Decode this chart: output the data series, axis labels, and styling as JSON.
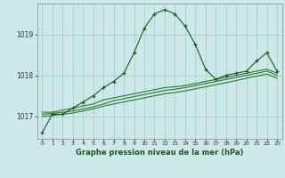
{
  "title": "Graphe pression niveau de la mer (hPa)",
  "background_color": "#cce8e8",
  "grid_color": "#aacece",
  "line_color_main": "#1a5c1a",
  "line_color_flat": "#2d7a2d",
  "xlim": [
    -0.5,
    23.5
  ],
  "ylim": [
    1016.45,
    1019.75
  ],
  "yticks": [
    1017,
    1018,
    1019
  ],
  "xticks": [
    0,
    1,
    2,
    3,
    4,
    5,
    6,
    7,
    8,
    9,
    10,
    11,
    12,
    13,
    14,
    15,
    16,
    17,
    18,
    19,
    20,
    21,
    22,
    23
  ],
  "x": [
    0,
    1,
    2,
    3,
    4,
    5,
    6,
    7,
    8,
    9,
    10,
    11,
    12,
    13,
    14,
    15,
    16,
    17,
    18,
    19,
    20,
    21,
    22,
    23
  ],
  "values_main": [
    1016.6,
    1017.05,
    1017.05,
    1017.2,
    1017.35,
    1017.5,
    1017.7,
    1017.85,
    1018.05,
    1018.55,
    1019.15,
    1019.5,
    1019.6,
    1019.5,
    1019.2,
    1018.75,
    1018.15,
    1017.9,
    1018.0,
    1018.05,
    1018.1,
    1018.35,
    1018.55,
    1018.1
  ],
  "values_flat1": [
    1017.1,
    1017.1,
    1017.15,
    1017.2,
    1017.25,
    1017.3,
    1017.4,
    1017.45,
    1017.5,
    1017.55,
    1017.6,
    1017.65,
    1017.7,
    1017.72,
    1017.75,
    1017.8,
    1017.85,
    1017.9,
    1017.95,
    1018.0,
    1018.05,
    1018.1,
    1018.15,
    1018.05
  ],
  "values_flat2": [
    1017.05,
    1017.07,
    1017.1,
    1017.13,
    1017.18,
    1017.23,
    1017.3,
    1017.38,
    1017.43,
    1017.48,
    1017.53,
    1017.58,
    1017.63,
    1017.66,
    1017.7,
    1017.75,
    1017.8,
    1017.85,
    1017.9,
    1017.95,
    1018.0,
    1018.05,
    1018.1,
    1018.0
  ],
  "values_flat3": [
    1017.0,
    1017.02,
    1017.05,
    1017.08,
    1017.13,
    1017.18,
    1017.25,
    1017.3,
    1017.35,
    1017.4,
    1017.45,
    1017.5,
    1017.55,
    1017.58,
    1017.62,
    1017.67,
    1017.72,
    1017.77,
    1017.82,
    1017.87,
    1017.93,
    1017.98,
    1018.03,
    1017.93
  ]
}
